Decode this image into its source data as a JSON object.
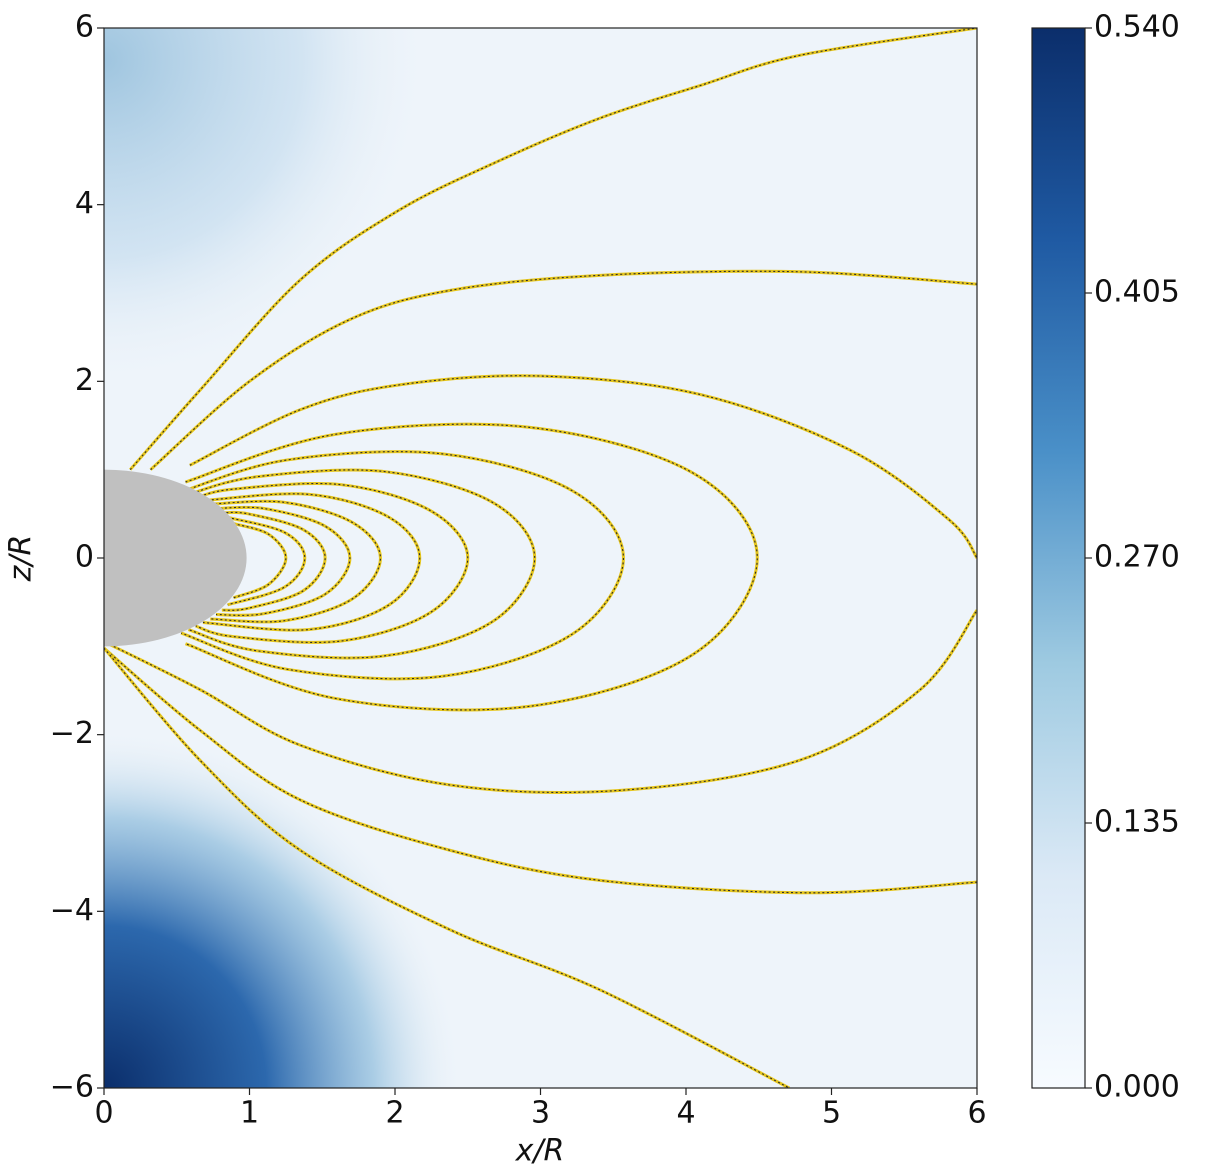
{
  "chart_data": {
    "type": "field_lines",
    "xlabel": "x/R",
    "ylabel": "z/R",
    "xlim": [
      0,
      6
    ],
    "ylim": [
      -6,
      6
    ],
    "xticks": [
      0,
      1,
      2,
      3,
      4,
      5,
      6
    ],
    "yticks": [
      {
        "value": -6,
        "label": "−6"
      },
      {
        "value": -4,
        "label": "−4"
      },
      {
        "value": -2,
        "label": "−2"
      },
      0,
      2,
      4,
      6
    ],
    "line_color": "#e6c61c",
    "line_dash_color": "#2b2b2b",
    "body": {
      "rx": 0.98,
      "rz": 1.0,
      "color": "#c0c0c0"
    },
    "colorbar": {
      "lim": [
        0,
        0.54
      ],
      "colors": [
        "#f7fbff",
        "#dbe9f6",
        "#9ecae1",
        "#4a90c8",
        "#1f5aa3",
        "#0b2e6b"
      ],
      "ticks": [
        {
          "value": 0,
          "label": "0.000"
        },
        {
          "value": 0.135,
          "label": "0.135"
        },
        {
          "value": 0.27,
          "label": "0.270"
        },
        {
          "value": 0.405,
          "label": "0.405"
        },
        {
          "value": 0.54,
          "label": "0.540"
        }
      ]
    },
    "lines": [
      {
        "x": [
          0.18,
          0.66,
          1.35,
          2.03,
          2.72,
          3.41,
          4.1,
          4.78,
          6
        ],
        "z": [
          1.0,
          1.9,
          3.15,
          3.94,
          4.5,
          4.98,
          5.35,
          5.69,
          6
        ]
      },
      {
        "x": [
          0.32,
          1.0,
          1.69,
          2.38,
          3.41,
          4.78,
          6
        ],
        "z": [
          1.0,
          2.0,
          2.7,
          3.03,
          3.2,
          3.24,
          3.1
        ]
      },
      {
        "x": [
          0.59,
          1.35,
          2.03,
          3.0,
          4.1,
          5.13,
          5.81,
          6
        ],
        "z": [
          1.05,
          1.68,
          1.96,
          2.06,
          1.85,
          1.22,
          0.43,
          0
        ]
      },
      {
        "x": [
          0.04,
          0.66,
          1.35,
          2.38,
          3.55,
          4.78,
          5.61,
          6
        ],
        "z": [
          -0.98,
          -1.49,
          -2.12,
          -2.57,
          -2.63,
          -2.29,
          -1.49,
          -0.59
        ]
      },
      {
        "x": [
          0.0,
          0.66,
          1.35,
          2.38,
          3.41,
          4.85,
          6
        ],
        "z": [
          -1.02,
          -1.95,
          -2.74,
          -3.31,
          -3.65,
          -3.79,
          -3.67
        ]
      },
      {
        "x": [
          0.0,
          0.66,
          1.35,
          2.38,
          3.41,
          4.71
        ],
        "z": [
          -1.02,
          -2.29,
          -3.31,
          -4.21,
          -4.89,
          -6
        ]
      },
      {
        "x": [
          0.56,
          1.59,
          2.92,
          4.05,
          4.49,
          4.05,
          2.92,
          1.59,
          0.56
        ],
        "z": [
          0.86,
          1.4,
          1.48,
          0.96,
          0,
          -1.09,
          -1.68,
          -1.59,
          -0.97
        ]
      },
      {
        "x": [
          0.53,
          1.26,
          2.32,
          3.22,
          3.57,
          3.22,
          2.32,
          1.26,
          0.53
        ],
        "z": [
          0.75,
          1.11,
          1.18,
          0.76,
          0,
          -0.86,
          -1.34,
          -1.26,
          -0.85
        ]
      },
      {
        "x": [
          0.58,
          1.05,
          1.92,
          2.67,
          2.96,
          2.67,
          1.92,
          1.05,
          0.58
        ],
        "z": [
          0.72,
          0.92,
          0.98,
          0.63,
          0,
          -0.72,
          -1.11,
          -1.05,
          -0.81
        ]
      },
      {
        "x": [
          0.63,
          0.89,
          1.63,
          2.25,
          2.5,
          2.25,
          1.63,
          0.89,
          0.63
        ],
        "z": [
          0.68,
          0.78,
          0.83,
          0.53,
          0,
          -0.61,
          -0.94,
          -0.89,
          -0.77
        ]
      },
      {
        "x": [
          0.68,
          1.41,
          1.96,
          2.17,
          1.96,
          1.41,
          0.68
        ],
        "z": [
          0.65,
          0.72,
          0.46,
          0,
          -0.53,
          -0.81,
          -0.73
        ]
      },
      {
        "x": [
          0.73,
          1.24,
          1.71,
          1.9,
          1.71,
          1.24,
          0.73
        ],
        "z": [
          0.61,
          0.63,
          0.4,
          0,
          -0.46,
          -0.71,
          -0.69
        ]
      },
      {
        "x": [
          0.77,
          1.1,
          1.52,
          1.69,
          1.52,
          1.1,
          0.77
        ],
        "z": [
          0.56,
          0.56,
          0.36,
          0,
          -0.41,
          -0.63,
          -0.64
        ]
      },
      {
        "x": [
          0.81,
          0.99,
          1.37,
          1.52,
          1.37,
          0.99,
          0.81
        ],
        "z": [
          0.51,
          0.5,
          0.32,
          0,
          -0.37,
          -0.57,
          -0.59
        ]
      },
      {
        "x": [
          0.85,
          1.24,
          1.38,
          1.24,
          0.85
        ],
        "z": [
          0.46,
          0.29,
          0,
          -0.33,
          -0.53
        ]
      },
      {
        "x": [
          0.89,
          1.13,
          1.25,
          1.13,
          0.89
        ],
        "z": [
          0.39,
          0.27,
          0,
          -0.3,
          -0.45
        ]
      }
    ]
  }
}
